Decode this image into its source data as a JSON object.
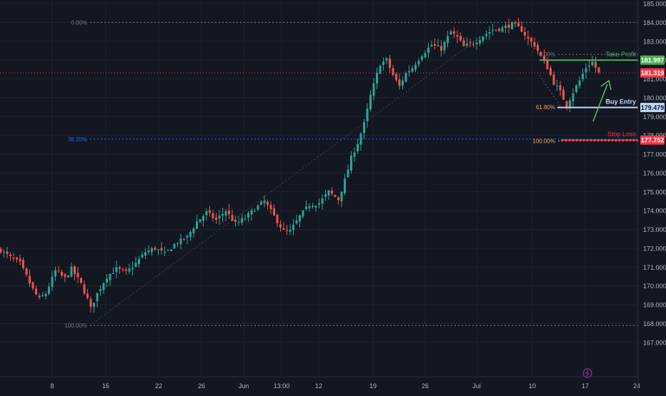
{
  "colors": {
    "background": "#131722",
    "up": "#26a69a",
    "down": "#ef5350",
    "grid": "#1e222d",
    "axis_text": "#b2b5be",
    "fib_level": "#787b86",
    "fib_382": "#2962ff",
    "fib_618": "#e0a96d",
    "take_profit": "#4caf50",
    "stop_loss": "#f23645",
    "buy_entry": "#bbd9fb",
    "current_price": "#f23645"
  },
  "icons": {
    "lightning": "lightning-icon"
  },
  "chart_data": {
    "type": "candlestick",
    "ylim": [
      166.5,
      186.2
    ],
    "y_ticks": [
      "167.000",
      "168.000",
      "169.000",
      "170.000",
      "171.000",
      "172.000",
      "173.000",
      "174.000",
      "175.000",
      "176.000",
      "177.000",
      "178.000",
      "179.000",
      "180.000",
      "181.000",
      "182.000",
      "183.000",
      "184.000",
      "185.000"
    ],
    "x_ticks": [
      "8",
      "15",
      "22",
      "26",
      "Jun",
      "13:00",
      "12",
      "19",
      "26",
      "Jul",
      "10",
      "17",
      "24"
    ],
    "grid": "horizontal-and-vertical",
    "fib_large": {
      "levels": [
        {
          "label": "0.00%",
          "value": 184.0
        },
        {
          "label": "38.20%",
          "value": 177.8
        },
        {
          "label": "100.00%",
          "value": 167.9
        }
      ]
    },
    "fib_small": {
      "levels": [
        {
          "label": "0.00%",
          "value": 182.3
        },
        {
          "label": "61.80%",
          "value": 179.5
        },
        {
          "label": "100.00%",
          "value": 177.7
        }
      ]
    },
    "annotations": {
      "take_profit": {
        "text": "Take Profit",
        "price": "181.997",
        "value": 181.997
      },
      "buy_entry": {
        "text": "Buy Entry",
        "price": "179.479",
        "value": 179.479
      },
      "stop_loss": {
        "text": "Stop Loss",
        "price": "177.752",
        "value": 177.752
      },
      "current": {
        "price": "181.319",
        "value": 181.319
      }
    },
    "close_path": [
      [
        0,
        171.9
      ],
      [
        3,
        171.5
      ],
      [
        6,
        171.2
      ],
      [
        8,
        170.5
      ],
      [
        10,
        169.8
      ],
      [
        12,
        169.3
      ],
      [
        14,
        169.6
      ],
      [
        17,
        170.8
      ],
      [
        20,
        170.4
      ],
      [
        22,
        170.9
      ],
      [
        25,
        170.1
      ],
      [
        27,
        169.3
      ],
      [
        28,
        168.8
      ],
      [
        30,
        169.6
      ],
      [
        33,
        170.5
      ],
      [
        36,
        170.9
      ],
      [
        39,
        170.7
      ],
      [
        42,
        171.2
      ],
      [
        45,
        171.8
      ],
      [
        48,
        172.0
      ],
      [
        51,
        171.7
      ],
      [
        54,
        172.2
      ],
      [
        58,
        172.6
      ],
      [
        61,
        173.4
      ],
      [
        64,
        173.9
      ],
      [
        67,
        173.5
      ],
      [
        70,
        174.0
      ],
      [
        73,
        173.3
      ],
      [
        76,
        173.6
      ],
      [
        79,
        174.1
      ],
      [
        82,
        174.5
      ],
      [
        85,
        173.7
      ],
      [
        88,
        172.9
      ],
      [
        90,
        172.9
      ],
      [
        93,
        173.7
      ],
      [
        96,
        174.3
      ],
      [
        99,
        174.4
      ],
      [
        102,
        175.0
      ],
      [
        105,
        174.6
      ],
      [
        107,
        175.6
      ],
      [
        109,
        176.8
      ],
      [
        111,
        177.6
      ],
      [
        113,
        178.6
      ],
      [
        115,
        180.1
      ],
      [
        118,
        181.8
      ],
      [
        120,
        182.0
      ],
      [
        122,
        181.2
      ],
      [
        124,
        180.6
      ],
      [
        126,
        181.3
      ],
      [
        128,
        181.6
      ],
      [
        131,
        182.3
      ],
      [
        134,
        182.8
      ],
      [
        137,
        182.6
      ],
      [
        140,
        183.5
      ],
      [
        142,
        183.2
      ],
      [
        144,
        182.7
      ],
      [
        147,
        182.9
      ],
      [
        150,
        183.3
      ],
      [
        153,
        183.6
      ],
      [
        156,
        183.7
      ],
      [
        159,
        183.9
      ],
      [
        162,
        183.6
      ],
      [
        164,
        183.1
      ],
      [
        166,
        182.8
      ],
      [
        168,
        182.2
      ],
      [
        170,
        181.6
      ],
      [
        172,
        180.8
      ],
      [
        174,
        180.3
      ],
      [
        176,
        179.6
      ],
      [
        178,
        180.3
      ],
      [
        180,
        180.9
      ],
      [
        182,
        181.6
      ],
      [
        184,
        181.9
      ],
      [
        186,
        181.3
      ]
    ]
  }
}
